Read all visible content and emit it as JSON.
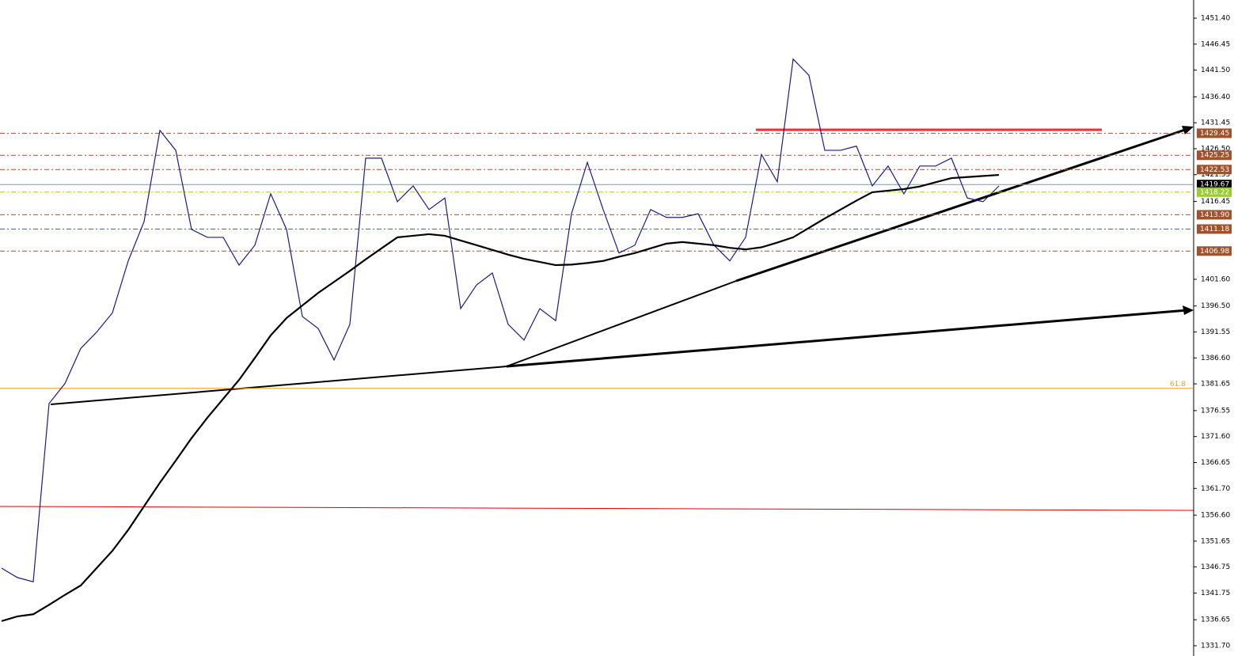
{
  "chart_data": {
    "type": "line",
    "ylim": [
      1329.74,
      1454.87
    ],
    "yticks": [
      {
        "value": 1451.4,
        "label": "1451.40"
      },
      1446.45,
      {
        "value": 1441.5,
        "label": "1441.50"
      },
      {
        "value": 1436.4,
        "label": "1436.40"
      },
      1431.45,
      {
        "value": 1426.5,
        "label": "1426.50"
      },
      1421.55,
      1416.45,
      {
        "value": 1401.6,
        "label": "1401.60"
      },
      {
        "value": 1396.5,
        "label": "1396.50"
      },
      1391.55,
      {
        "value": 1386.6,
        "label": "1386.60"
      },
      1381.65,
      1376.55,
      {
        "value": 1371.6,
        "label": "1371.60"
      },
      1366.65,
      {
        "value": 1361.7,
        "label": "1361.70"
      },
      {
        "value": 1356.6,
        "label": "1356.60"
      },
      1351.65,
      1346.75,
      1341.75,
      1336.65,
      {
        "value": 1331.7,
        "label": "1331.70"
      }
    ],
    "levels": [
      {
        "value": 1429.45,
        "color": "#a0522d",
        "line_color": "#a0522d"
      },
      {
        "value": 1425.25,
        "color": "#a0522d",
        "line_color": "#a0522d"
      },
      {
        "value": 1422.53,
        "color": "#a0522d",
        "line_color": "#a0522d"
      },
      {
        "value": 1419.67,
        "color": "#000000",
        "line_color": "#5fa8a0"
      },
      {
        "value": 1418.22,
        "color": "#9acd32",
        "line_color": "#9acd32"
      },
      {
        "value": 1413.9,
        "label": "1413.90",
        "color": "#a0522d",
        "line_color": "#a0522d"
      },
      {
        "value": 1411.18,
        "color": "#a0522d",
        "line_color": "#a0522d"
      },
      {
        "value": 1406.98,
        "color": "#a0522d",
        "line_color": "#a0522d"
      }
    ],
    "fib_level": 61.8,
    "fib_price": 1380.8,
    "fib_color": "#e8a317",
    "series": [
      {
        "color": "#1a1a8c",
        "width": 1.2,
        "values": [
          1346.5,
          1344.7,
          1343.9,
          1377.9,
          1381.7,
          1388.4,
          1391.5,
          1395.2,
          1405.1,
          1412.6,
          1430.0,
          1426.2,
          1411.1,
          1409.6,
          1409.6,
          1404.3,
          1408.1,
          1417.9,
          1411.1,
          1394.5,
          1392.2,
          1386.2,
          1393.0,
          1424.7,
          1424.7,
          1416.4,
          1419.4,
          1414.9,
          1417.1,
          1396.0,
          1400.5,
          1402.8,
          1393.0,
          1390.0,
          1396.0,
          1393.7,
          1414.1,
          1423.9,
          1414.9,
          1406.6,
          1408.1,
          1414.9,
          1413.4,
          1413.4,
          1414.1,
          1408.1,
          1405.1,
          1409.6,
          1425.4,
          1420.2,
          1443.6,
          1440.5,
          1426.2,
          1426.2,
          1427.0,
          1419.4,
          1423.2,
          1417.9,
          1423.2,
          1423.2,
          1424.7,
          1417.1,
          1416.4,
          1419.4
        ]
      },
      {
        "color": "#000000",
        "width": 2.2,
        "values": [
          1336.4,
          1337.3,
          1337.7,
          1339.5,
          1341.4,
          1343.2,
          1346.5,
          1349.8,
          1353.8,
          1358.3,
          1362.8,
          1367.0,
          1371.3,
          1375.2,
          1378.8,
          1382.4,
          1386.6,
          1390.9,
          1394.2,
          1396.6,
          1399.0,
          1401.1,
          1403.2,
          1405.4,
          1407.5,
          1409.6,
          1409.9,
          1410.2,
          1409.9,
          1409.0,
          1408.1,
          1407.2,
          1406.3,
          1405.5,
          1404.9,
          1404.3,
          1404.4,
          1404.7,
          1405.1,
          1405.9,
          1406.6,
          1407.5,
          1408.4,
          1408.7,
          1408.4,
          1408.1,
          1407.6,
          1407.3,
          1407.7,
          1408.6,
          1409.6,
          1411.4,
          1413.2,
          1414.9,
          1416.6,
          1418.2,
          1418.5,
          1418.8,
          1419.3,
          1420.1,
          1420.9,
          1421.1,
          1421.3,
          1421.5
        ]
      }
    ]
  }
}
